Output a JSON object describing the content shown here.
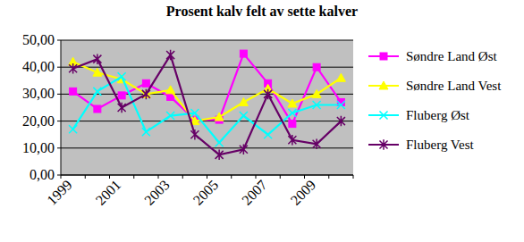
{
  "chart_data": {
    "type": "line",
    "title": "Prosent kalv felt av sette kalver",
    "categories": [
      "1999",
      null,
      "2001",
      null,
      "2003",
      null,
      "2005",
      null,
      "2007",
      null,
      "2009",
      null
    ],
    "series": [
      {
        "name": "Søndre Land Øst",
        "color": "#ff00ff",
        "marker": "square",
        "line_style": "solid",
        "values": [
          31,
          24.5,
          29.5,
          34,
          29,
          20.5,
          20.5,
          45,
          34,
          19,
          40,
          27
        ]
      },
      {
        "name": "Søndre Land Vest",
        "color": "#ffff00",
        "marker": "triangle",
        "line_style": "solid",
        "values": [
          42,
          38,
          35.5,
          30,
          31.5,
          20,
          21.5,
          27,
          32,
          26.5,
          30,
          36
        ]
      },
      {
        "name": "Fluberg Øst",
        "color": "#00ffff",
        "marker": "x",
        "line_style": "solid",
        "values": [
          17,
          31,
          36.5,
          16,
          22,
          23,
          12,
          22,
          15,
          23,
          26,
          26
        ]
      },
      {
        "name": "Fluberg Vest",
        "color": "#660066",
        "marker": "star",
        "line_style": "solid",
        "values": [
          39.5,
          43,
          25,
          30,
          44.5,
          15,
          7.5,
          9.5,
          30,
          13,
          11.5,
          20
        ]
      }
    ],
    "ylim": [
      0,
      50
    ],
    "yticks": [
      {
        "value": 0,
        "label": "0,00"
      },
      {
        "value": 10,
        "label": "10,00"
      },
      {
        "value": 20,
        "label": "20,00"
      },
      {
        "value": 30,
        "label": "30,00"
      },
      {
        "value": 40,
        "label": "40,00"
      },
      {
        "value": 50,
        "label": "50,00"
      }
    ],
    "grid": true,
    "legend": "right"
  }
}
